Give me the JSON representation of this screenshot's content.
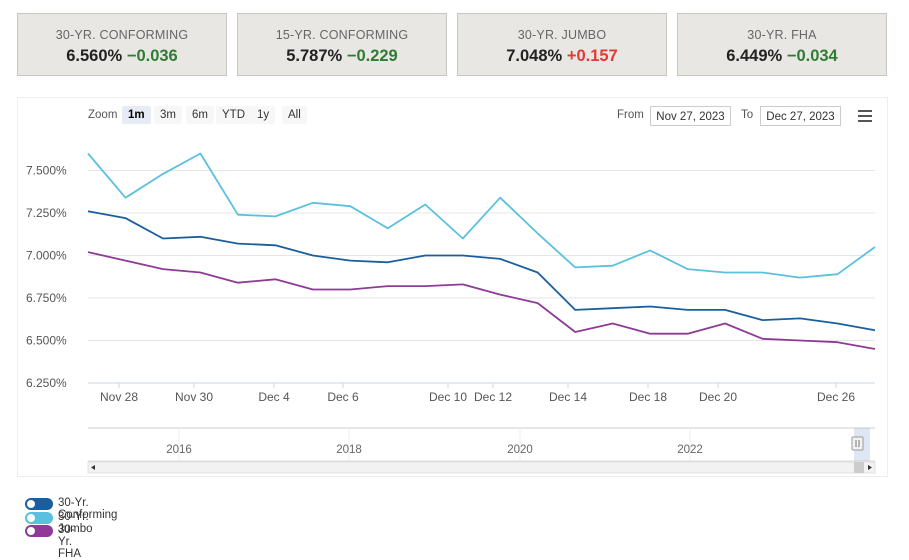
{
  "cards": [
    {
      "label": "30-YR. CONFORMING",
      "rate": "6.560%",
      "change": "−0.036",
      "direction": "down"
    },
    {
      "label": "15-YR. CONFORMING",
      "rate": "5.787%",
      "change": "−0.229",
      "direction": "down"
    },
    {
      "label": "30-YR. JUMBO",
      "rate": "7.048%",
      "change": "+0.157",
      "direction": "up"
    },
    {
      "label": "30-YR. FHA",
      "rate": "6.449%",
      "change": "−0.034",
      "direction": "down"
    }
  ],
  "toolbar": {
    "zoom_label": "Zoom",
    "zoom_buttons": [
      "1m",
      "3m",
      "6m",
      "YTD",
      "1y",
      "All"
    ],
    "active_zoom": "1m",
    "from_label": "From",
    "from_value": "Nov 27, 2023",
    "to_label": "To",
    "to_value": "Dec 27, 2023"
  },
  "chart_data": {
    "type": "line",
    "x_ticks": [
      "Nov 28",
      "Nov 30",
      "Dec 4",
      "Dec 6",
      "Dec 10",
      "Dec 12",
      "Dec 14",
      "Dec 18",
      "Dec 20",
      "Dec 26"
    ],
    "y_ticks": [
      "7.500%",
      "7.250%",
      "7.000%",
      "6.750%",
      "6.500%",
      "6.250%"
    ],
    "ylim": [
      6.25,
      7.75
    ],
    "navigator_ticks": [
      "2016",
      "2018",
      "2020",
      "2022"
    ],
    "series": [
      {
        "name": "30-Yr. Conforming",
        "color": "#1b5e9e",
        "values": [
          7.26,
          7.22,
          7.1,
          7.11,
          7.07,
          7.06,
          7.0,
          6.97,
          6.96,
          7.0,
          7.0,
          6.98,
          6.9,
          6.68,
          6.69,
          6.7,
          6.68,
          6.68,
          6.62,
          6.63,
          6.6,
          6.56
        ]
      },
      {
        "name": "30-Yr. Jumbo",
        "color": "#5bc0de",
        "values": [
          7.6,
          7.34,
          7.48,
          7.6,
          7.24,
          7.23,
          7.31,
          7.29,
          7.16,
          7.3,
          7.1,
          7.34,
          7.13,
          6.93,
          6.94,
          7.03,
          6.92,
          6.9,
          6.9,
          6.87,
          6.89,
          7.05
        ]
      },
      {
        "name": "30-Yr. FHA",
        "color": "#8e3a96",
        "values": [
          7.02,
          6.97,
          6.92,
          6.9,
          6.84,
          6.86,
          6.8,
          6.8,
          6.82,
          6.82,
          6.83,
          6.77,
          6.72,
          6.55,
          6.6,
          6.54,
          6.54,
          6.6,
          6.51,
          6.5,
          6.49,
          6.45
        ]
      }
    ]
  }
}
